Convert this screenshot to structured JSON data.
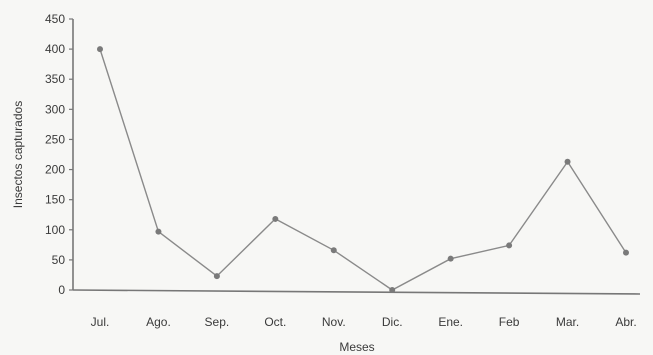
{
  "chart_data": {
    "type": "line",
    "title": "",
    "xlabel": "Meses",
    "ylabel": "Insectos capturados",
    "categories": [
      "Jul.",
      "Ago.",
      "Sep.",
      "Oct.",
      "Nov.",
      "Dic.",
      "Ene.",
      "Feb",
      "Mar.",
      "Abr."
    ],
    "series": [
      {
        "values": [
          400,
          97,
          23,
          118,
          66,
          0,
          52,
          74,
          213,
          62
        ]
      }
    ],
    "ylim": [
      0,
      450
    ],
    "yticks": [
      0,
      50,
      100,
      150,
      200,
      250,
      300,
      350,
      400,
      450
    ],
    "grid": false,
    "legend": "none",
    "colors": {
      "line": "#8a8a8a",
      "marker": "#7a7a7a",
      "axis": "#777777",
      "background": "#f7f7f5"
    }
  }
}
